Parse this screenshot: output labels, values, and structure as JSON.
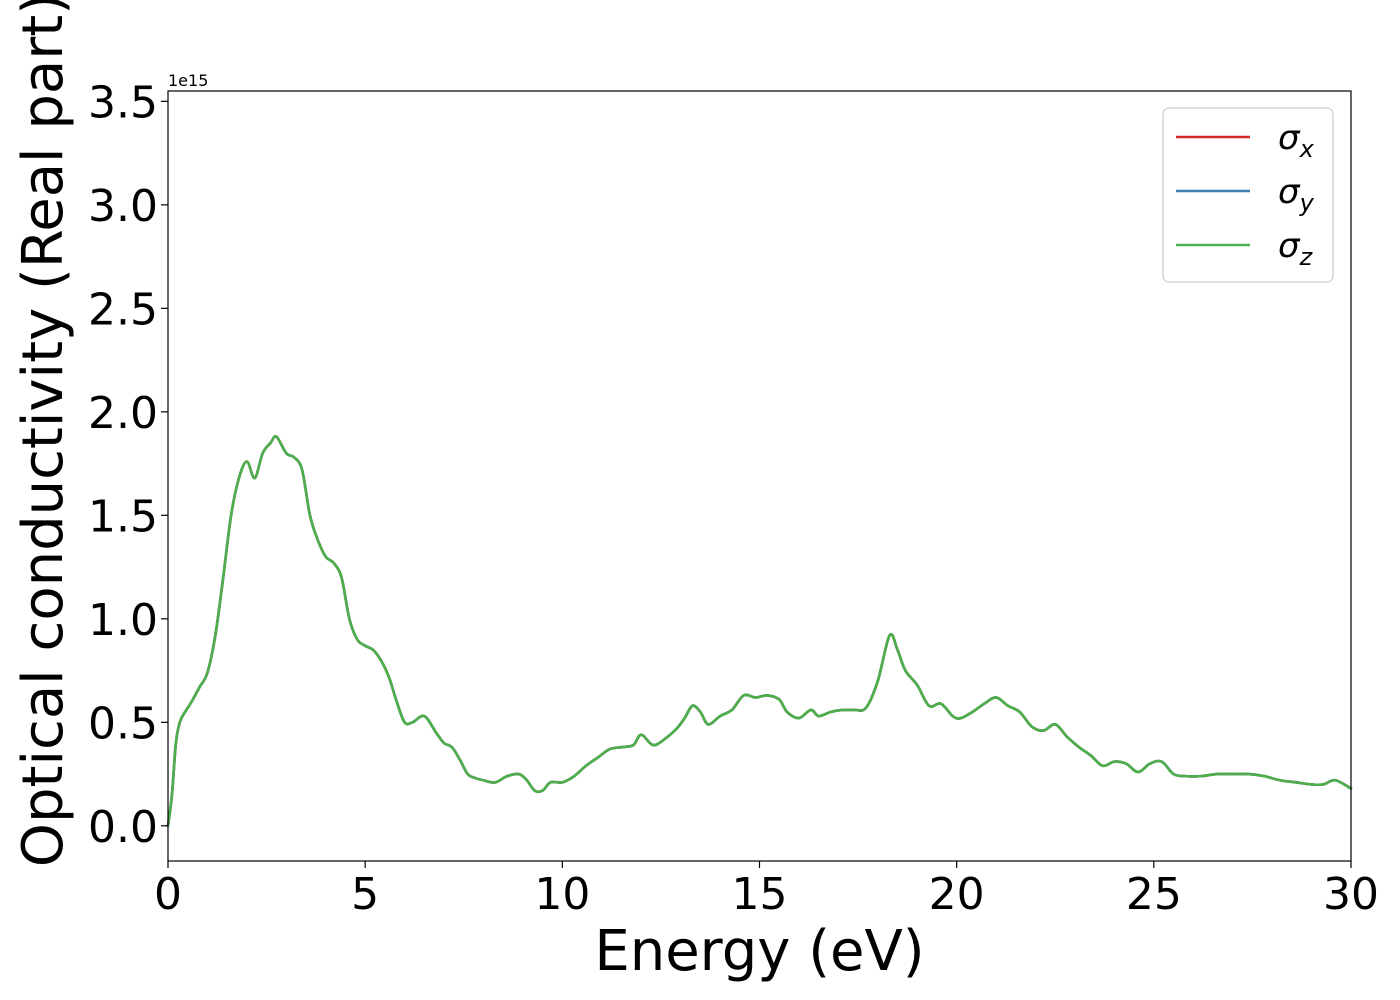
{
  "chart_data": {
    "type": "line",
    "xlabel": "Energy (eV)",
    "ylabel": "Optical conductivity (Real part)",
    "y_offset_label": "1e15",
    "xlim": [
      0,
      30
    ],
    "ylim": [
      -0.17,
      3.55
    ],
    "y_scale_factor": 1000000000000000.0,
    "x_ticks": [
      0,
      5,
      10,
      15,
      20,
      25,
      30
    ],
    "x_tick_labels": [
      "0",
      "5",
      "10",
      "15",
      "20",
      "25",
      "30"
    ],
    "y_ticks": [
      0.0,
      0.5,
      1.0,
      1.5,
      2.0,
      2.5,
      3.0,
      3.5
    ],
    "y_tick_labels": [
      "0.0",
      "0.5",
      "1.0",
      "1.5",
      "2.0",
      "2.5",
      "3.0",
      "3.5"
    ],
    "grid": false,
    "legend_position": "top-right",
    "x": [
      0,
      0.1,
      0.2,
      0.3,
      0.4,
      0.6,
      0.8,
      1.0,
      1.2,
      1.4,
      1.6,
      1.8,
      2.0,
      2.2,
      2.4,
      2.6,
      2.75,
      3.0,
      3.2,
      3.4,
      3.6,
      3.8,
      4.0,
      4.2,
      4.4,
      4.6,
      4.8,
      5.0,
      5.2,
      5.4,
      5.6,
      5.8,
      6.0,
      6.2,
      6.5,
      6.8,
      7.0,
      7.2,
      7.4,
      7.6,
      7.8,
      8.0,
      8.3,
      8.6,
      8.9,
      9.1,
      9.3,
      9.5,
      9.7,
      10.0,
      10.3,
      10.6,
      10.9,
      11.2,
      11.5,
      11.8,
      12.0,
      12.3,
      12.6,
      12.9,
      13.1,
      13.3,
      13.5,
      13.7,
      14.0,
      14.3,
      14.6,
      14.9,
      15.2,
      15.5,
      15.7,
      16.0,
      16.3,
      16.5,
      16.8,
      17.1,
      17.4,
      17.7,
      18.0,
      18.3,
      18.5,
      18.7,
      19.0,
      19.3,
      19.6,
      19.9,
      20.1,
      20.4,
      20.7,
      21.0,
      21.3,
      21.6,
      21.9,
      22.2,
      22.5,
      22.8,
      23.1,
      23.4,
      23.7,
      24.0,
      24.3,
      24.6,
      24.9,
      25.2,
      25.5,
      25.8,
      26.2,
      26.6,
      27.0,
      27.4,
      27.8,
      28.2,
      28.6,
      29.0,
      29.3,
      29.6,
      30.0
    ],
    "series": [
      {
        "name": "σx",
        "symbol": "σ",
        "subscript": "x",
        "color": "#d62728",
        "values": [
          0.0,
          0.15,
          0.4,
          0.5,
          0.54,
          0.6,
          0.67,
          0.74,
          0.92,
          1.2,
          1.5,
          1.68,
          1.76,
          1.68,
          1.8,
          1.85,
          1.88,
          1.8,
          1.78,
          1.72,
          1.5,
          1.38,
          1.3,
          1.27,
          1.2,
          1.0,
          0.9,
          0.87,
          0.85,
          0.8,
          0.72,
          0.6,
          0.5,
          0.5,
          0.53,
          0.45,
          0.4,
          0.38,
          0.32,
          0.25,
          0.23,
          0.22,
          0.21,
          0.24,
          0.25,
          0.22,
          0.17,
          0.17,
          0.21,
          0.21,
          0.24,
          0.29,
          0.33,
          0.37,
          0.38,
          0.39,
          0.44,
          0.39,
          0.42,
          0.47,
          0.52,
          0.58,
          0.55,
          0.49,
          0.53,
          0.56,
          0.63,
          0.62,
          0.63,
          0.61,
          0.55,
          0.52,
          0.56,
          0.53,
          0.55,
          0.56,
          0.56,
          0.57,
          0.7,
          0.92,
          0.85,
          0.75,
          0.68,
          0.58,
          0.59,
          0.53,
          0.52,
          0.55,
          0.59,
          0.62,
          0.58,
          0.55,
          0.48,
          0.46,
          0.49,
          0.43,
          0.38,
          0.34,
          0.29,
          0.31,
          0.3,
          0.26,
          0.3,
          0.31,
          0.25,
          0.24,
          0.24,
          0.25,
          0.25,
          0.25,
          0.24,
          0.22,
          0.21,
          0.2,
          0.2,
          0.22,
          0.18
        ]
      },
      {
        "name": "σy",
        "symbol": "σ",
        "subscript": "y",
        "color": "#3c7fb1",
        "values": [
          0.0,
          0.15,
          0.4,
          0.5,
          0.54,
          0.6,
          0.67,
          0.74,
          0.92,
          1.2,
          1.5,
          1.68,
          1.76,
          1.68,
          1.8,
          1.85,
          1.88,
          1.8,
          1.78,
          1.72,
          1.5,
          1.38,
          1.3,
          1.27,
          1.2,
          1.0,
          0.9,
          0.87,
          0.85,
          0.8,
          0.72,
          0.6,
          0.5,
          0.5,
          0.53,
          0.45,
          0.4,
          0.38,
          0.32,
          0.25,
          0.23,
          0.22,
          0.21,
          0.24,
          0.25,
          0.22,
          0.17,
          0.17,
          0.21,
          0.21,
          0.24,
          0.29,
          0.33,
          0.37,
          0.38,
          0.39,
          0.44,
          0.39,
          0.42,
          0.47,
          0.52,
          0.58,
          0.55,
          0.49,
          0.53,
          0.56,
          0.63,
          0.62,
          0.63,
          0.61,
          0.55,
          0.52,
          0.56,
          0.53,
          0.55,
          0.56,
          0.56,
          0.57,
          0.7,
          0.92,
          0.85,
          0.75,
          0.68,
          0.58,
          0.59,
          0.53,
          0.52,
          0.55,
          0.59,
          0.62,
          0.58,
          0.55,
          0.48,
          0.46,
          0.49,
          0.43,
          0.38,
          0.34,
          0.29,
          0.31,
          0.3,
          0.26,
          0.3,
          0.31,
          0.25,
          0.24,
          0.24,
          0.25,
          0.25,
          0.25,
          0.24,
          0.22,
          0.21,
          0.2,
          0.2,
          0.22,
          0.18
        ]
      },
      {
        "name": "σz",
        "symbol": "σ",
        "subscript": "z",
        "color": "#4daf4a",
        "values": [
          0.0,
          0.15,
          0.4,
          0.5,
          0.54,
          0.6,
          0.67,
          0.74,
          0.92,
          1.2,
          1.5,
          1.68,
          1.76,
          1.68,
          1.8,
          1.85,
          1.88,
          1.8,
          1.78,
          1.72,
          1.5,
          1.38,
          1.3,
          1.27,
          1.2,
          1.0,
          0.9,
          0.87,
          0.85,
          0.8,
          0.72,
          0.6,
          0.5,
          0.5,
          0.53,
          0.45,
          0.4,
          0.38,
          0.32,
          0.25,
          0.23,
          0.22,
          0.21,
          0.24,
          0.25,
          0.22,
          0.17,
          0.17,
          0.21,
          0.21,
          0.24,
          0.29,
          0.33,
          0.37,
          0.38,
          0.39,
          0.44,
          0.39,
          0.42,
          0.47,
          0.52,
          0.58,
          0.55,
          0.49,
          0.53,
          0.56,
          0.63,
          0.62,
          0.63,
          0.61,
          0.55,
          0.52,
          0.56,
          0.53,
          0.55,
          0.56,
          0.56,
          0.57,
          0.7,
          0.92,
          0.85,
          0.75,
          0.68,
          0.58,
          0.59,
          0.53,
          0.52,
          0.55,
          0.59,
          0.62,
          0.58,
          0.55,
          0.48,
          0.46,
          0.49,
          0.43,
          0.38,
          0.34,
          0.29,
          0.31,
          0.3,
          0.26,
          0.3,
          0.31,
          0.25,
          0.24,
          0.24,
          0.25,
          0.25,
          0.25,
          0.24,
          0.22,
          0.21,
          0.2,
          0.2,
          0.22,
          0.18
        ]
      }
    ]
  }
}
